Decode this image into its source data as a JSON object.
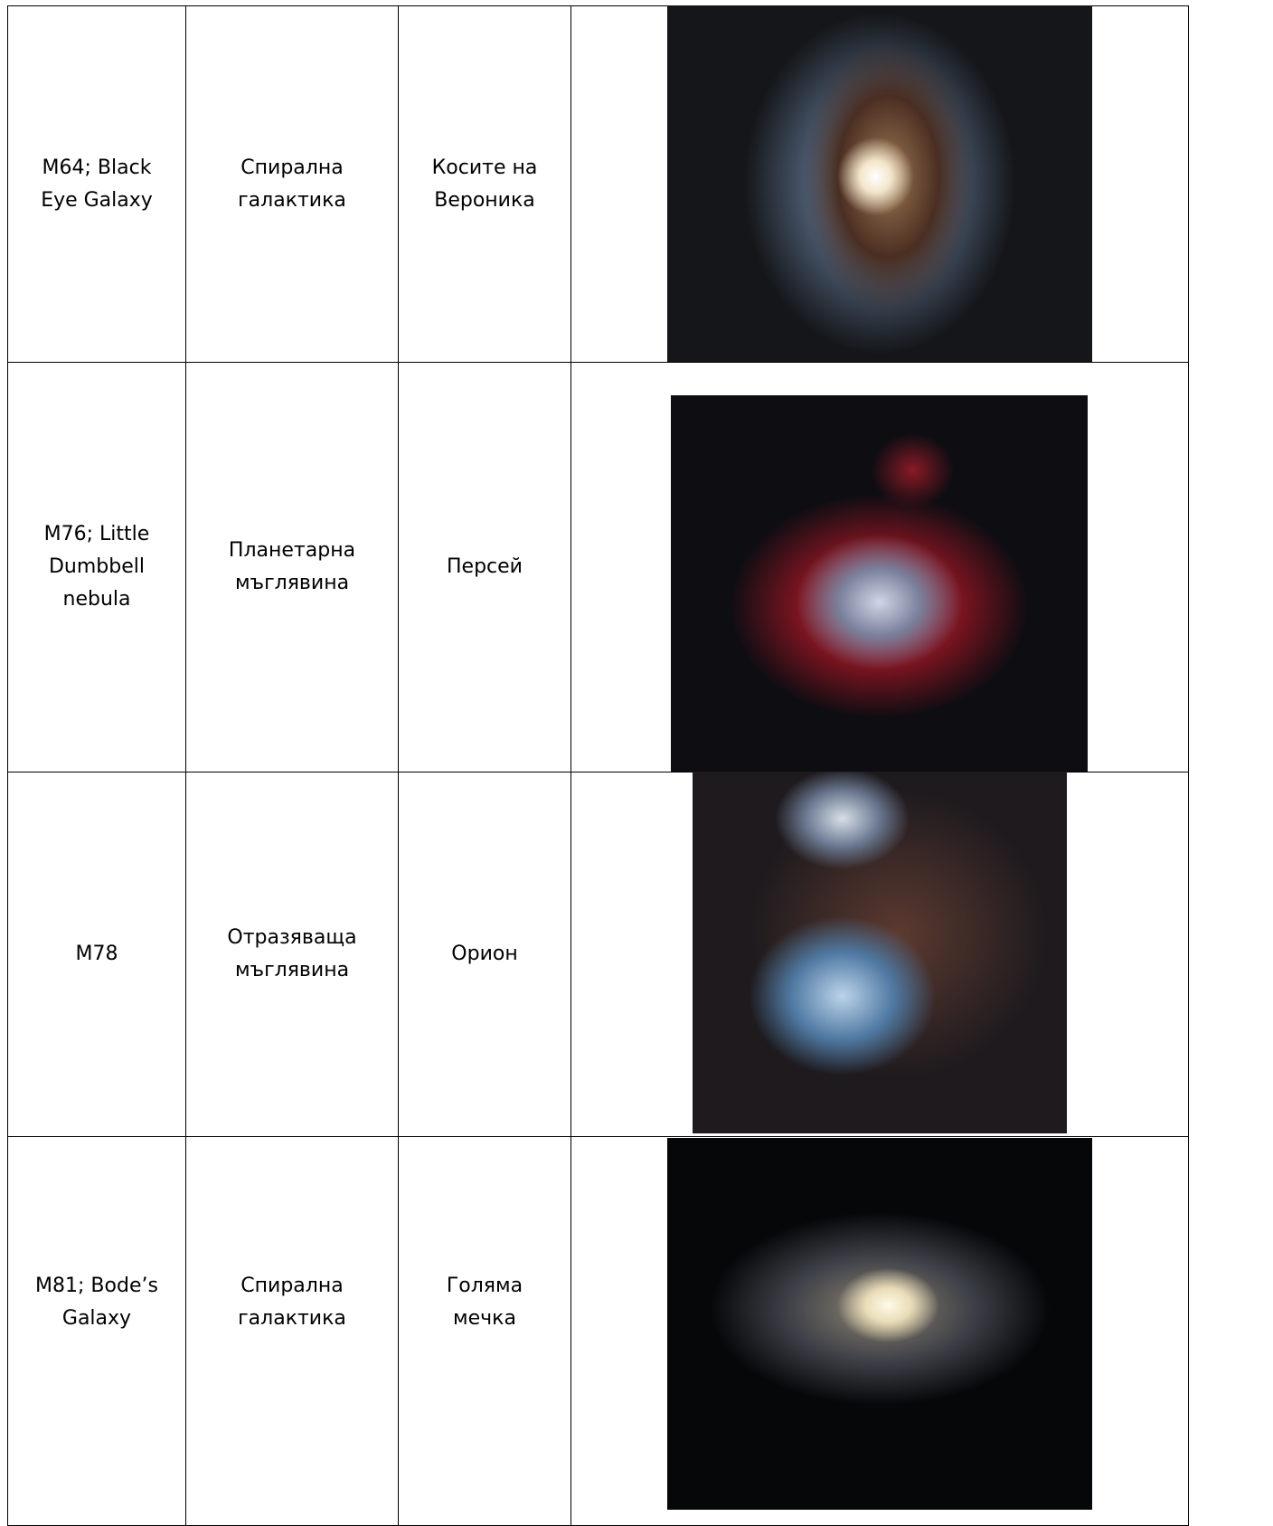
{
  "table": {
    "rows": [
      [
        "M64; Black Eye Galaxy",
        "Спирална галактика",
        "Косите на Вероника"
      ],
      [
        "M76; Little Dumbbell nebula",
        "Планетарна мъглявина",
        "Персей"
      ],
      [
        "M78",
        "Отразяваща мъглявина",
        "Орион"
      ],
      [
        "M81; Bode’s Galaxy",
        "Спирална галактика",
        "Голяма мечка"
      ]
    ]
  }
}
